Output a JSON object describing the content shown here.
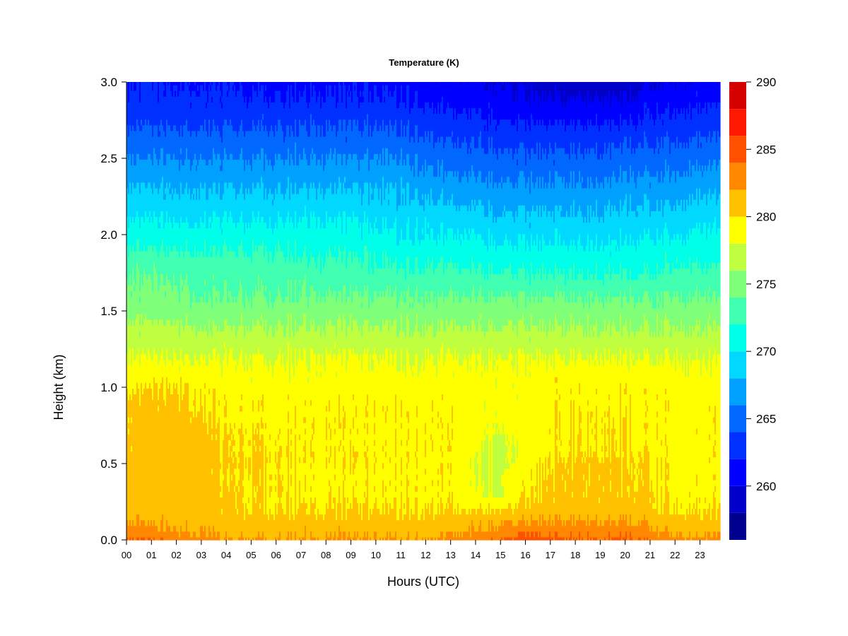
{
  "chart_data": {
    "type": "heatmap",
    "title": "Temperature (K)",
    "xlabel": "Hours (UTC)",
    "ylabel": "Height (km)",
    "x_tick_labels": [
      "00",
      "01",
      "02",
      "03",
      "04",
      "05",
      "06",
      "07",
      "08",
      "09",
      "10",
      "11",
      "12",
      "13",
      "14",
      "15",
      "16",
      "17",
      "18",
      "19",
      "20",
      "21",
      "22",
      "23"
    ],
    "x_ticks": [
      0,
      1,
      2,
      3,
      4,
      5,
      6,
      7,
      8,
      9,
      10,
      11,
      12,
      13,
      14,
      15,
      16,
      17,
      18,
      19,
      20,
      21,
      22,
      23
    ],
    "xlim": [
      0,
      23.9
    ],
    "y_tick_labels": [
      "0.0",
      "0.5",
      "1.0",
      "1.5",
      "2.0",
      "2.5",
      "3.0"
    ],
    "y_ticks": [
      0.0,
      0.5,
      1.0,
      1.5,
      2.0,
      2.5,
      3.0
    ],
    "ylim": [
      0,
      3.0
    ],
    "colorbar": {
      "tick_labels": [
        "260",
        "265",
        "270",
        "275",
        "280",
        "285",
        "290"
      ],
      "ticks": [
        260,
        265,
        270,
        275,
        280,
        285,
        290
      ],
      "range": [
        256,
        290
      ],
      "levels": [
        256,
        258,
        260,
        262,
        264,
        266,
        268,
        270,
        272,
        274,
        276,
        278,
        280,
        282,
        284,
        286,
        288,
        290
      ],
      "colors": [
        "#00008f",
        "#0000c8",
        "#0000ff",
        "#0030ff",
        "#0068ff",
        "#00a0ff",
        "#00d8ff",
        "#00ffe8",
        "#40ffb0",
        "#80ff78",
        "#c0ff40",
        "#ffff00",
        "#ffc000",
        "#ff8800",
        "#ff5000",
        "#ff1800",
        "#d40000",
        "#8f0000"
      ]
    },
    "column_hours": [
      0,
      1,
      2,
      3,
      4,
      5,
      6,
      7,
      8,
      9,
      10,
      11,
      12,
      13,
      14,
      15,
      16,
      17,
      18,
      19,
      20,
      21,
      22,
      23
    ],
    "row_heights": [
      0.0,
      0.1,
      0.2,
      0.3,
      0.4,
      0.5,
      0.6,
      0.7,
      0.8,
      0.9,
      1.0,
      1.1,
      1.2,
      1.3,
      1.4,
      1.5,
      1.6,
      1.7,
      1.8,
      1.9,
      2.0,
      2.1,
      2.2,
      2.3,
      2.4,
      2.5,
      2.6,
      2.7,
      2.8,
      2.9,
      3.0
    ],
    "values_by_hour": [
      [
        284,
        282,
        281,
        280.5,
        281,
        281,
        280.5,
        280.5,
        280.5,
        280.5,
        279.5,
        278.5,
        278,
        277,
        276.5,
        275,
        274.5,
        274,
        273.5,
        272,
        271,
        270,
        269,
        268,
        267,
        266,
        265,
        264,
        263,
        262.5,
        262
      ],
      [
        284,
        282,
        281,
        281,
        281,
        281,
        281,
        281,
        281,
        280.5,
        280,
        279,
        278,
        277,
        276.5,
        275,
        274.5,
        274,
        273.5,
        272,
        271,
        270,
        269,
        268,
        267,
        266,
        265,
        264,
        263,
        262.5,
        262
      ],
      [
        283,
        281.5,
        281,
        281,
        281,
        281,
        281,
        281,
        281,
        280.5,
        280,
        279,
        278,
        277,
        276.5,
        275,
        274.5,
        274,
        273,
        272,
        271,
        270,
        269,
        268,
        267,
        266,
        265,
        264,
        263,
        262.5,
        262
      ],
      [
        283,
        281.5,
        281,
        281,
        281,
        281,
        281,
        281,
        280.5,
        280,
        280,
        279,
        278,
        277,
        276,
        275,
        274,
        273.5,
        273,
        272,
        271,
        270,
        269,
        268,
        267,
        266,
        265,
        264,
        263,
        262.5,
        262
      ],
      [
        282,
        281,
        280.5,
        280.5,
        280,
        280,
        280,
        280,
        279.5,
        279.5,
        279,
        278.5,
        278,
        277,
        276,
        275,
        274,
        273.5,
        273,
        272,
        271,
        270,
        269,
        268,
        267,
        266,
        265,
        264,
        263,
        262.5,
        262
      ],
      [
        282,
        281,
        280,
        280,
        280,
        280.5,
        280,
        280,
        279.5,
        279.5,
        279,
        278.5,
        278,
        277,
        276,
        275,
        274,
        273.5,
        273,
        272,
        271,
        270,
        269,
        268,
        267,
        266,
        265,
        264,
        263,
        262,
        261.5
      ],
      [
        282,
        281,
        280,
        280,
        280,
        280,
        280,
        279.5,
        279.5,
        279.5,
        279,
        278.5,
        278,
        277,
        276,
        275,
        274,
        273.5,
        273,
        272,
        271,
        270,
        269,
        268,
        267,
        266,
        265,
        264,
        263,
        262,
        261.5
      ],
      [
        282,
        281,
        280,
        279.5,
        279.5,
        279.5,
        279.5,
        279.5,
        279.5,
        279.5,
        279,
        278.5,
        278,
        277,
        276,
        275,
        274,
        273.5,
        272.5,
        271.5,
        271,
        270,
        269,
        268,
        267,
        266,
        265,
        264,
        263,
        262,
        261.5
      ],
      [
        282,
        281,
        280,
        279.5,
        279.5,
        279.5,
        279.5,
        279.5,
        279.5,
        279.5,
        279,
        278.5,
        278,
        277,
        276,
        275,
        274,
        273,
        272.5,
        271.5,
        271,
        270,
        269,
        268,
        267,
        266,
        265,
        264,
        263,
        262,
        261.5
      ],
      [
        282,
        281,
        280,
        279.5,
        279.5,
        279.5,
        279.5,
        279.5,
        279.5,
        279.5,
        279,
        278.5,
        278,
        277,
        276,
        275,
        274,
        273,
        272.5,
        271.5,
        270.5,
        270,
        269,
        268,
        267,
        266,
        265,
        264,
        263,
        262,
        261.5
      ],
      [
        282,
        281,
        280,
        279.5,
        279.5,
        279.5,
        279.5,
        279.5,
        279.5,
        279.5,
        279,
        278.5,
        278,
        277,
        276,
        275,
        274,
        273,
        272,
        271.5,
        270.5,
        269.5,
        268.5,
        268,
        267,
        266,
        265,
        264,
        263,
        262,
        261.5
      ],
      [
        282,
        281,
        280,
        279.5,
        279.5,
        279.5,
        279.5,
        279.5,
        279.5,
        279.5,
        279,
        278.5,
        278,
        277,
        276,
        275,
        274,
        273,
        272,
        271,
        270,
        269.5,
        268.5,
        268,
        267,
        266,
        265,
        264,
        263,
        262,
        261
      ],
      [
        282,
        281,
        280,
        279.5,
        279.5,
        279.5,
        279.5,
        279.5,
        279.5,
        279.5,
        279,
        278.5,
        278,
        277,
        276,
        275,
        274,
        273,
        272,
        271,
        270,
        269.5,
        268.5,
        267.5,
        266.5,
        265.5,
        264.5,
        263.5,
        262.5,
        261.5,
        261
      ],
      [
        282.5,
        281,
        280,
        279.5,
        279.5,
        279.5,
        279.5,
        279.5,
        279.5,
        279.5,
        279,
        278.5,
        278,
        277,
        276,
        275,
        274,
        273,
        272,
        271,
        270,
        269,
        268,
        267,
        266,
        265,
        264,
        263,
        262,
        261,
        260.5
      ],
      [
        283,
        281.5,
        280,
        278.5,
        278,
        278,
        278.5,
        279,
        279,
        279,
        279,
        278.5,
        278,
        277,
        276,
        275,
        274,
        273,
        272,
        271,
        270,
        269,
        268,
        267,
        266,
        265,
        264,
        263,
        262,
        261,
        260.5
      ],
      [
        284,
        282,
        280,
        278,
        278,
        277.5,
        277.5,
        278,
        278.5,
        278.5,
        278.5,
        278.5,
        278,
        277,
        276,
        275,
        274,
        272.5,
        271.5,
        270.5,
        269.5,
        268.5,
        267.5,
        266.5,
        265.5,
        264.5,
        263.5,
        262.5,
        261.5,
        260.5,
        260
      ],
      [
        285,
        282.5,
        280.5,
        279.5,
        279.5,
        279,
        278.5,
        279,
        279,
        279,
        279,
        278.5,
        278,
        277,
        276,
        275,
        274,
        272.5,
        271.5,
        270.5,
        269.5,
        268.5,
        267.5,
        266.5,
        265.5,
        264.5,
        263.5,
        262.5,
        261,
        260,
        259.5
      ],
      [
        284.5,
        282.5,
        281,
        280.5,
        280.5,
        280,
        279.5,
        279.5,
        279.5,
        279.5,
        279.5,
        279,
        278,
        277,
        276,
        275,
        274,
        272.5,
        271.5,
        270.5,
        269.5,
        268.5,
        267.5,
        266.5,
        265.5,
        264.5,
        263.5,
        262.5,
        261,
        260,
        259
      ],
      [
        284,
        282.5,
        281,
        280.5,
        280.5,
        280.5,
        280,
        280,
        280,
        279.5,
        279.5,
        279,
        278,
        277,
        276,
        275,
        274,
        272.5,
        271.5,
        270.5,
        269.5,
        268.5,
        267.5,
        266.5,
        265.5,
        264.5,
        263.5,
        262.5,
        261,
        260,
        259
      ],
      [
        284,
        282.5,
        281,
        280.5,
        280.5,
        280.5,
        280,
        280,
        280,
        279.5,
        279.5,
        279,
        278,
        277,
        276,
        275,
        274,
        272.5,
        271.5,
        270.5,
        269.5,
        268.5,
        267.5,
        266.5,
        265.5,
        264.5,
        263.5,
        262.5,
        261,
        260,
        259
      ],
      [
        284.5,
        282.5,
        281,
        280.5,
        280.5,
        280.5,
        280,
        280,
        280,
        279.5,
        279.5,
        279,
        278,
        277,
        276,
        275,
        274,
        272.5,
        271.5,
        270.5,
        269.5,
        269,
        268,
        267,
        266,
        265,
        264,
        262.5,
        261,
        260,
        259
      ],
      [
        283.5,
        282,
        280.5,
        280.5,
        280,
        280,
        279.5,
        279.5,
        279.5,
        279.5,
        279.5,
        279,
        278,
        277,
        276,
        275,
        274,
        272.5,
        271.5,
        271,
        270,
        269,
        268,
        267,
        266,
        265,
        264,
        263,
        262,
        261,
        260
      ],
      [
        282.5,
        281,
        280,
        279.5,
        279.5,
        279.5,
        279.5,
        279.5,
        279.5,
        279.5,
        279,
        278.5,
        278,
        277,
        276,
        275,
        274,
        273,
        272,
        271,
        270,
        269,
        268,
        267,
        266,
        265,
        264,
        263,
        262,
        261,
        260
      ],
      [
        282.5,
        281,
        280,
        279.5,
        279.5,
        279.5,
        279.5,
        279.5,
        279.5,
        279.5,
        279,
        278.5,
        278,
        277,
        276,
        275,
        274,
        273,
        272,
        271,
        270.5,
        269.5,
        268.5,
        267.5,
        266.5,
        265.5,
        264.5,
        263.5,
        262.5,
        261.5,
        261
      ]
    ]
  }
}
